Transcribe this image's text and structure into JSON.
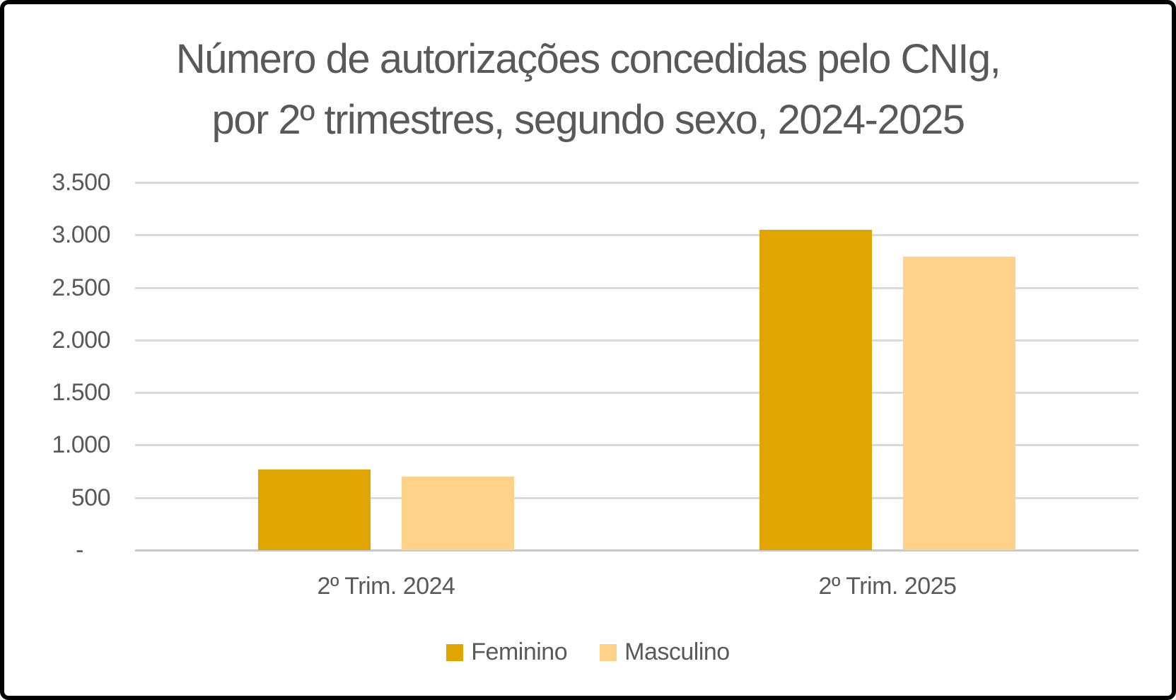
{
  "frame": {
    "border_color": "#000000",
    "background": "#FFFFFF"
  },
  "chart_data": {
    "type": "bar",
    "title": "Número de autorizações concedidas pelo CNIg, por 2º trimestres, segundo sexo, 2024-2025",
    "title_line1": "Número de autorizações concedidas pelo CNIg,",
    "title_line2": "por 2º trimestres, segundo sexo, 2024-2025",
    "categories": [
      "2º Trim. 2024",
      "2º Trim. 2025"
    ],
    "series": [
      {
        "name": "Feminino",
        "color": "#E0A500",
        "values": [
          770,
          3050
        ]
      },
      {
        "name": "Masculino",
        "color": "#FFD189",
        "values": [
          700,
          2790
        ]
      }
    ],
    "xlabel": "",
    "ylabel": "",
    "ylim": [
      0,
      3500
    ],
    "ytick_step": 500,
    "ytick_labels": [
      "-",
      "500",
      "1.000",
      "1.500",
      "2.000",
      "2.500",
      "3.000",
      "3.500"
    ],
    "grid": true,
    "gridline_color": "#D9D9D9",
    "axis_line_color": "#C8C8C8",
    "text_color": "#595959",
    "legend_position": "bottom",
    "legend": [
      "Feminino",
      "Masculino"
    ]
  }
}
